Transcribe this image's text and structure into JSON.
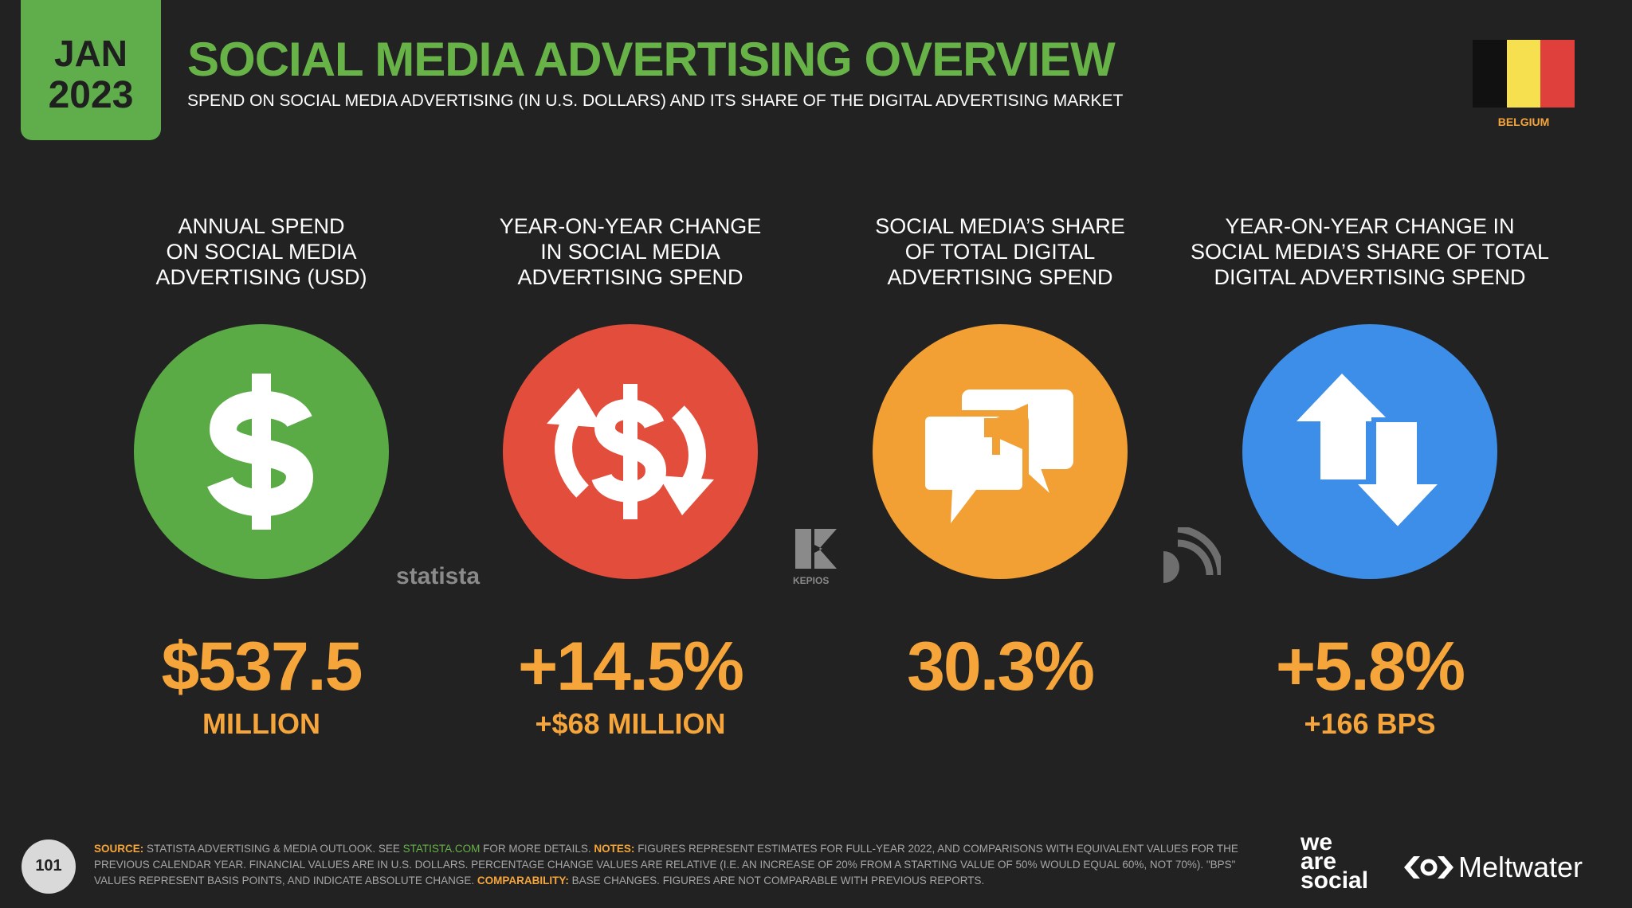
{
  "header": {
    "month": "JAN",
    "year": "2023",
    "title": "SOCIAL MEDIA ADVERTISING OVERVIEW",
    "subtitle": "SPEND ON SOCIAL MEDIA ADVERTISING (IN U.S. DOLLARS) AND ITS SHARE OF THE DIGITAL ADVERTISING MARKET",
    "country": "BELGIUM"
  },
  "stats": [
    {
      "label": [
        "ANNUAL SPEND",
        "ON SOCIAL MEDIA",
        "ADVERTISING (USD)"
      ],
      "value": "$537.5",
      "subvalue": "MILLION"
    },
    {
      "label": [
        "YEAR-ON-YEAR CHANGE",
        "IN SOCIAL MEDIA",
        "ADVERTISING SPEND"
      ],
      "value": "+14.5%",
      "subvalue": "+$68 MILLION"
    },
    {
      "label": [
        "SOCIAL MEDIA’S SHARE",
        "OF TOTAL DIGITAL",
        "ADVERTISING SPEND"
      ],
      "value": "30.3%"
    },
    {
      "label": [
        "YEAR-ON-YEAR CHANGE IN",
        "SOCIAL MEDIA’S SHARE OF TOTAL",
        "DIGITAL ADVERTISING SPEND"
      ],
      "value": "+5.8%",
      "subvalue": "+166 BPS"
    }
  ],
  "logos": {
    "statista": "statista",
    "kepios": "KEPIOS",
    "wearesocial": [
      "we",
      "are",
      "social"
    ],
    "meltwater": "Meltwater"
  },
  "footer": {
    "page": "101",
    "segments": [
      "SOURCE:",
      "STATISTA ADVERTISING & MEDIA OUTLOOK. SEE",
      "STATISTA.COM",
      "FOR MORE DETAILS.",
      "NOTES:",
      "FIGURES REPRESENT ESTIMATES FOR FULL-YEAR 2022, AND COMPARISONS WITH EQUIVALENT VALUES FOR THE PREVIOUS CALENDAR YEAR. FINANCIAL VALUES ARE IN U.S. DOLLARS. PERCENTAGE CHANGE VALUES ARE RELATIVE (I.E. AN INCREASE OF 20% FROM A STARTING VALUE OF 50% WOULD EQUAL 60%, NOT 70%). \"BPS\" VALUES REPRESENT BASIS POINTS, AND INDICATE ABSOLUTE CHANGE.",
      "COMPARABILITY:",
      "BASE CHANGES. FIGURES ARE NOT COMPARABLE WITH PREVIOUS REPORTS."
    ]
  }
}
